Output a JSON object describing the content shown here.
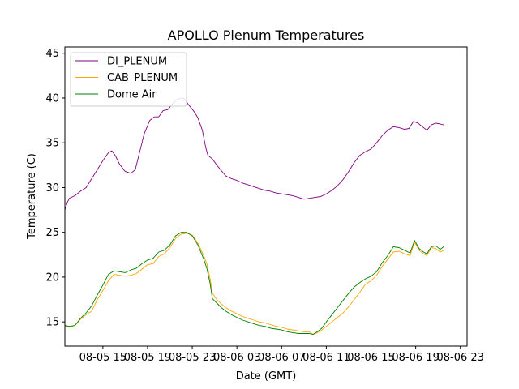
{
  "chart_data": {
    "type": "line",
    "title": "APOLLO Plenum Temperatures",
    "xlabel": "Date (GMT)",
    "ylabel": "Temperature (C)",
    "xlim": [
      11.6,
      47.6
    ],
    "ylim": [
      12.3,
      45.7
    ],
    "grid": false,
    "legend_position": "top-left",
    "x_unit": "hours since 08-05 00:00 GMT",
    "xticks": [
      {
        "x": 15,
        "label": "08-05 15"
      },
      {
        "x": 19,
        "label": "08-05 19"
      },
      {
        "x": 23,
        "label": "08-05 23"
      },
      {
        "x": 27,
        "label": "08-06 03"
      },
      {
        "x": 31,
        "label": "08-06 07"
      },
      {
        "x": 35,
        "label": "08-06 11"
      },
      {
        "x": 39,
        "label": "08-06 15"
      },
      {
        "x": 43,
        "label": "08-06 19"
      },
      {
        "x": 47,
        "label": "08-06 23"
      }
    ],
    "yticks": [
      {
        "y": 15,
        "label": "15"
      },
      {
        "y": 20,
        "label": "20"
      },
      {
        "y": 25,
        "label": "25"
      },
      {
        "y": 30,
        "label": "30"
      },
      {
        "y": 35,
        "label": "35"
      },
      {
        "y": 40,
        "label": "40"
      },
      {
        "y": 45,
        "label": "45"
      }
    ],
    "series": [
      {
        "name": "DI_PLENUM",
        "color": "#800080",
        "points": [
          [
            11.6,
            27.5
          ],
          [
            11.8,
            28.3
          ],
          [
            12.0,
            28.8
          ],
          [
            12.5,
            29.1
          ],
          [
            13.0,
            29.6
          ],
          [
            13.5,
            30.0
          ],
          [
            14.0,
            31.0
          ],
          [
            14.5,
            32.0
          ],
          [
            15.0,
            33.0
          ],
          [
            15.5,
            33.9
          ],
          [
            15.8,
            34.1
          ],
          [
            16.1,
            33.6
          ],
          [
            16.5,
            32.6
          ],
          [
            17.0,
            31.8
          ],
          [
            17.5,
            31.6
          ],
          [
            17.9,
            32.0
          ],
          [
            18.3,
            34.0
          ],
          [
            18.7,
            36.0
          ],
          [
            19.2,
            37.5
          ],
          [
            19.6,
            37.9
          ],
          [
            20.0,
            37.9
          ],
          [
            20.4,
            38.6
          ],
          [
            20.8,
            38.7
          ],
          [
            21.2,
            39.3
          ],
          [
            21.6,
            39.8
          ],
          [
            22.0,
            40.0
          ],
          [
            22.3,
            39.9
          ],
          [
            22.7,
            39.2
          ],
          [
            23.1,
            38.6
          ],
          [
            23.5,
            37.8
          ],
          [
            23.9,
            36.4
          ],
          [
            24.2,
            34.5
          ],
          [
            24.4,
            33.6
          ],
          [
            24.8,
            33.2
          ],
          [
            25.2,
            32.5
          ],
          [
            25.6,
            31.9
          ],
          [
            26.0,
            31.3
          ],
          [
            26.5,
            31.0
          ],
          [
            27.0,
            30.8
          ],
          [
            27.5,
            30.5
          ],
          [
            28.0,
            30.3
          ],
          [
            28.5,
            30.1
          ],
          [
            29.0,
            29.9
          ],
          [
            29.5,
            29.7
          ],
          [
            30.0,
            29.6
          ],
          [
            30.5,
            29.4
          ],
          [
            31.0,
            29.3
          ],
          [
            31.5,
            29.2
          ],
          [
            32.0,
            29.1
          ],
          [
            32.5,
            28.9
          ],
          [
            33.0,
            28.7
          ],
          [
            33.5,
            28.8
          ],
          [
            34.0,
            28.9
          ],
          [
            34.5,
            29.0
          ],
          [
            35.0,
            29.3
          ],
          [
            35.5,
            29.7
          ],
          [
            36.0,
            30.2
          ],
          [
            36.5,
            30.9
          ],
          [
            37.0,
            31.8
          ],
          [
            37.5,
            32.8
          ],
          [
            38.0,
            33.6
          ],
          [
            38.5,
            34.0
          ],
          [
            39.0,
            34.3
          ],
          [
            39.5,
            35.0
          ],
          [
            40.0,
            35.8
          ],
          [
            40.5,
            36.4
          ],
          [
            41.0,
            36.8
          ],
          [
            41.5,
            36.7
          ],
          [
            42.0,
            36.5
          ],
          [
            42.4,
            36.6
          ],
          [
            42.8,
            37.4
          ],
          [
            43.2,
            37.2
          ],
          [
            43.6,
            36.8
          ],
          [
            44.0,
            36.4
          ],
          [
            44.4,
            37.0
          ],
          [
            44.8,
            37.2
          ],
          [
            45.2,
            37.1
          ],
          [
            45.5,
            37.0
          ]
        ]
      },
      {
        "name": "CAB_PLENUM",
        "color": "#ffa500",
        "points": [
          [
            11.6,
            14.6
          ],
          [
            12.0,
            14.4
          ],
          [
            12.5,
            14.6
          ],
          [
            13.0,
            15.3
          ],
          [
            13.5,
            15.8
          ],
          [
            14.0,
            16.2
          ],
          [
            14.5,
            17.5
          ],
          [
            15.0,
            18.5
          ],
          [
            15.5,
            19.6
          ],
          [
            16.0,
            20.3
          ],
          [
            16.5,
            20.2
          ],
          [
            17.0,
            20.1
          ],
          [
            17.5,
            20.2
          ],
          [
            18.0,
            20.4
          ],
          [
            18.5,
            20.9
          ],
          [
            19.0,
            21.4
          ],
          [
            19.5,
            21.5
          ],
          [
            20.0,
            22.3
          ],
          [
            20.5,
            22.6
          ],
          [
            21.0,
            23.3
          ],
          [
            21.5,
            24.3
          ],
          [
            22.0,
            24.8
          ],
          [
            22.5,
            24.9
          ],
          [
            23.0,
            24.7
          ],
          [
            23.5,
            23.8
          ],
          [
            24.0,
            22.5
          ],
          [
            24.3,
            21.5
          ],
          [
            24.6,
            19.8
          ],
          [
            24.8,
            18.2
          ],
          [
            25.2,
            17.5
          ],
          [
            25.6,
            17.0
          ],
          [
            26.0,
            16.6
          ],
          [
            26.5,
            16.2
          ],
          [
            27.0,
            15.9
          ],
          [
            27.5,
            15.6
          ],
          [
            28.0,
            15.4
          ],
          [
            28.5,
            15.2
          ],
          [
            29.0,
            15.0
          ],
          [
            29.5,
            14.9
          ],
          [
            30.0,
            14.7
          ],
          [
            30.5,
            14.5
          ],
          [
            31.0,
            14.4
          ],
          [
            31.5,
            14.2
          ],
          [
            32.0,
            14.1
          ],
          [
            32.5,
            14.0
          ],
          [
            33.0,
            13.9
          ],
          [
            33.5,
            13.9
          ],
          [
            33.8,
            13.6
          ],
          [
            34.2,
            13.8
          ],
          [
            34.6,
            14.1
          ],
          [
            35.0,
            14.5
          ],
          [
            35.5,
            15.0
          ],
          [
            36.0,
            15.5
          ],
          [
            36.5,
            16.0
          ],
          [
            37.0,
            16.7
          ],
          [
            37.5,
            17.5
          ],
          [
            38.0,
            18.3
          ],
          [
            38.5,
            19.2
          ],
          [
            39.0,
            19.6
          ],
          [
            39.5,
            20.2
          ],
          [
            40.0,
            21.2
          ],
          [
            40.5,
            22.0
          ],
          [
            41.0,
            22.8
          ],
          [
            41.5,
            22.9
          ],
          [
            42.0,
            22.6
          ],
          [
            42.5,
            22.4
          ],
          [
            42.9,
            23.9
          ],
          [
            43.3,
            23.0
          ],
          [
            43.7,
            22.6
          ],
          [
            44.0,
            22.4
          ],
          [
            44.4,
            23.3
          ],
          [
            44.8,
            23.2
          ],
          [
            45.2,
            22.8
          ],
          [
            45.5,
            23.0
          ]
        ]
      },
      {
        "name": "Dome Air",
        "color": "#008000",
        "points": [
          [
            11.6,
            14.6
          ],
          [
            12.0,
            14.5
          ],
          [
            12.5,
            14.6
          ],
          [
            13.0,
            15.4
          ],
          [
            13.5,
            16.0
          ],
          [
            14.0,
            16.8
          ],
          [
            14.5,
            18.0
          ],
          [
            15.0,
            19.1
          ],
          [
            15.5,
            20.3
          ],
          [
            16.0,
            20.7
          ],
          [
            16.5,
            20.6
          ],
          [
            17.0,
            20.5
          ],
          [
            17.5,
            20.8
          ],
          [
            18.0,
            21.0
          ],
          [
            18.5,
            21.5
          ],
          [
            19.0,
            21.9
          ],
          [
            19.5,
            22.1
          ],
          [
            20.0,
            22.8
          ],
          [
            20.5,
            23.0
          ],
          [
            21.0,
            23.6
          ],
          [
            21.5,
            24.6
          ],
          [
            22.0,
            25.0
          ],
          [
            22.5,
            25.0
          ],
          [
            23.0,
            24.6
          ],
          [
            23.5,
            23.6
          ],
          [
            24.0,
            22.1
          ],
          [
            24.3,
            21.0
          ],
          [
            24.6,
            19.3
          ],
          [
            24.8,
            17.6
          ],
          [
            25.2,
            17.1
          ],
          [
            25.6,
            16.6
          ],
          [
            26.0,
            16.2
          ],
          [
            26.5,
            15.8
          ],
          [
            27.0,
            15.5
          ],
          [
            27.5,
            15.2
          ],
          [
            28.0,
            15.0
          ],
          [
            28.5,
            14.8
          ],
          [
            29.0,
            14.6
          ],
          [
            29.5,
            14.5
          ],
          [
            30.0,
            14.3
          ],
          [
            30.5,
            14.2
          ],
          [
            31.0,
            14.1
          ],
          [
            31.5,
            13.9
          ],
          [
            32.0,
            13.8
          ],
          [
            32.5,
            13.7
          ],
          [
            33.0,
            13.7
          ],
          [
            33.5,
            13.7
          ],
          [
            33.8,
            13.6
          ],
          [
            34.2,
            13.9
          ],
          [
            34.6,
            14.3
          ],
          [
            35.0,
            15.0
          ],
          [
            35.5,
            15.8
          ],
          [
            36.0,
            16.6
          ],
          [
            36.5,
            17.4
          ],
          [
            37.0,
            18.2
          ],
          [
            37.5,
            18.9
          ],
          [
            38.0,
            19.4
          ],
          [
            38.5,
            19.8
          ],
          [
            39.0,
            20.1
          ],
          [
            39.5,
            20.6
          ],
          [
            40.0,
            21.6
          ],
          [
            40.5,
            22.4
          ],
          [
            41.0,
            23.4
          ],
          [
            41.5,
            23.3
          ],
          [
            42.0,
            23.0
          ],
          [
            42.5,
            22.7
          ],
          [
            42.9,
            24.1
          ],
          [
            43.3,
            23.2
          ],
          [
            43.7,
            22.8
          ],
          [
            44.0,
            22.6
          ],
          [
            44.4,
            23.4
          ],
          [
            44.8,
            23.5
          ],
          [
            45.2,
            23.1
          ],
          [
            45.5,
            23.4
          ]
        ]
      }
    ]
  }
}
